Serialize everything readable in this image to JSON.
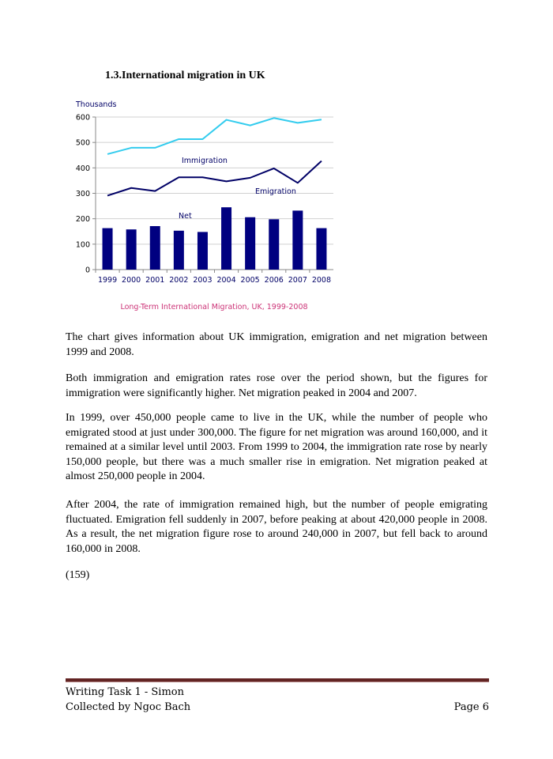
{
  "section_title": "1.3.International migration in UK",
  "chart_data": {
    "type": "bar+line",
    "ylabel": "Thousands",
    "caption": "Long-Term International Migration, UK, 1999-2008",
    "categories": [
      "1999",
      "2000",
      "2001",
      "2002",
      "2003",
      "2004",
      "2005",
      "2006",
      "2007",
      "2008"
    ],
    "yticks": [
      "0",
      "100",
      "200",
      "300",
      "400",
      "500",
      "600"
    ],
    "ylim": [
      0,
      600
    ],
    "grid": true,
    "series": [
      {
        "name": "Immigration",
        "type": "line",
        "color": "#33ccee",
        "values": [
          454,
          479,
          479,
          513,
          513,
          589,
          567,
          596,
          577,
          590
        ]
      },
      {
        "name": "Emigration",
        "type": "line",
        "color": "#000066",
        "values": [
          291,
          321,
          309,
          363,
          363,
          347,
          361,
          398,
          341,
          427
        ]
      },
      {
        "name": "Net",
        "type": "bar",
        "color": "#000080",
        "values": [
          163,
          158,
          171,
          153,
          148,
          245,
          206,
          198,
          232,
          163
        ]
      }
    ],
    "caption_color": "#cc3377"
  },
  "paragraphs": [
    "The chart gives information about UK immigration, emigration and net migration between 1999 and 2008.",
    "Both immigration and emigration rates rose over the period shown, but the figures for immigration were significantly higher. Net migration peaked in 2004 and 2007.",
    "In 1999, over 450,000 people came to live in the UK, while the number of people who emigrated stood at just under 300,000. The figure for net migration was around 160,000, and it remained at a similar level until 2003. From 1999 to 2004, the immigration rate rose by nearly 150,000 people, but there was a much smaller rise in emigration. Net migration peaked at almost 250,000 people in 2004.",
    "After 2004, the rate of immigration remained high, but the number of people emigrating fluctuated. Emigration fell suddenly in 2007, before peaking at about 420,000 people in 2008. As a result, the net migration figure rose to around 240,000 in 2007, but fell back to around 160,000 in 2008.",
    "(159)"
  ],
  "footer": {
    "line1": "Writing Task 1 - Simon",
    "line2": "Collected by Ngoc Bach",
    "page": "Page 6"
  }
}
